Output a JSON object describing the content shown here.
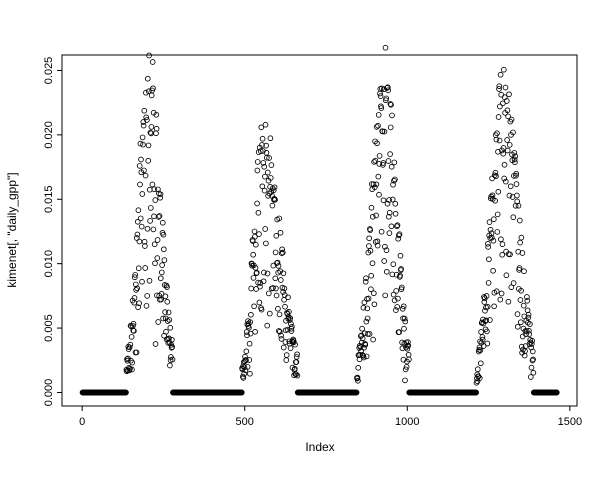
{
  "figure": {
    "background": "#ffffff",
    "foreground": "#000000"
  },
  "chart_data": {
    "type": "scatter",
    "xlabel": "Index",
    "ylabel": "kimenet[, \"daily_gpp\"]",
    "xlim": [
      0,
      1500
    ],
    "ylim": [
      0,
      0.025
    ],
    "x_ticks": [
      0,
      500,
      1000,
      1500
    ],
    "x_tick_labels": [
      "0",
      "500",
      "1000",
      "1500"
    ],
    "y_ticks": [
      0,
      0.005,
      0.01,
      0.015,
      0.02,
      0.025
    ],
    "y_tick_labels": [
      "0.000",
      "0.005",
      "0.010",
      "0.015",
      "0.020",
      "0.025"
    ],
    "marker": "open-circle",
    "point_color": "#000000",
    "grid": false,
    "legend": null,
    "n_points": 1460,
    "seed": 42,
    "baseline_value": 0,
    "zero_runs": [
      [
        1,
        135
      ],
      [
        279,
        491
      ],
      [
        663,
        844
      ],
      [
        1006,
        1212
      ],
      [
        1389,
        1460
      ]
    ],
    "seasons": [
      {
        "start": 136,
        "center": 205,
        "end": 278,
        "peak": 0.0255
      },
      {
        "start": 492,
        "center": 556,
        "end": 662,
        "peak": 0.0206
      },
      {
        "start": 845,
        "center": 928,
        "end": 1005,
        "peak": 0.0255
      },
      {
        "start": 1213,
        "center": 1295,
        "end": 1388,
        "peak": 0.0245
      }
    ]
  }
}
